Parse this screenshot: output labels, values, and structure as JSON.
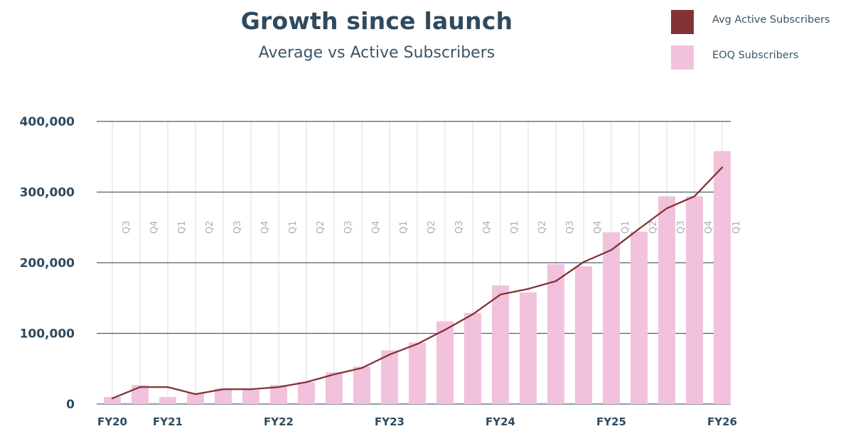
{
  "chart_data": {
    "type": "bar",
    "title": "Growth since launch",
    "subtitle": "Average vs Active Subscribers",
    "ylim": [
      0,
      400000
    ],
    "yticks": [
      0,
      100000,
      200000,
      300000,
      400000
    ],
    "ytick_labels": [
      "0",
      "100,000",
      "200,000",
      "300,000",
      "400,000"
    ],
    "categories": [
      "FY20 Q3",
      "FY20 Q4",
      "FY21 Q1",
      "FY21 Q2",
      "FY21 Q3",
      "FY21 Q4",
      "FY22 Q1",
      "FY22 Q2",
      "FY22 Q3",
      "FY22 Q4",
      "FY23 Q1",
      "FY23 Q2",
      "FY23 Q3",
      "FY23 Q4",
      "FY24 Q1",
      "FY24 Q2",
      "FY24 Q3",
      "FY24 Q4",
      "FY25 Q1",
      "FY25 Q2",
      "FY25 Q3",
      "FY25 Q4",
      "FY26 Q1"
    ],
    "quarter_labels": [
      "Q3",
      "Q4",
      "Q1",
      "Q2",
      "Q3",
      "Q4",
      "Q1",
      "Q2",
      "Q3",
      "Q4",
      "Q1",
      "Q2",
      "Q3",
      "Q4",
      "Q1",
      "Q2",
      "Q3",
      "Q4",
      "Q1",
      "Q2",
      "Q3",
      "Q4",
      "Q1"
    ],
    "fiscal_year_labels": [
      {
        "label": "FY20",
        "index": 0
      },
      {
        "label": "FY21",
        "index": 2
      },
      {
        "label": "FY22",
        "index": 6
      },
      {
        "label": "FY23",
        "index": 10
      },
      {
        "label": "FY24",
        "index": 14
      },
      {
        "label": "FY25",
        "index": 18
      },
      {
        "label": "FY26",
        "index": 22
      }
    ],
    "series": [
      {
        "name": "Avg Active Subscribers",
        "type": "line",
        "color": "#833237",
        "values": [
          8000,
          24000,
          24000,
          14000,
          21000,
          21000,
          24000,
          31000,
          42000,
          51000,
          70000,
          85000,
          105000,
          127000,
          155000,
          163000,
          174000,
          201000,
          218000,
          248000,
          277000,
          294000,
          335000
        ]
      },
      {
        "name": "EOQ Subscribers",
        "type": "bar",
        "color": "#f2c2dc",
        "values": [
          10000,
          27000,
          10000,
          16000,
          22000,
          20000,
          27000,
          31000,
          45000,
          53000,
          76000,
          87000,
          117000,
          129000,
          168000,
          158000,
          198000,
          195000,
          243000,
          244000,
          294000,
          294000,
          358000
        ]
      }
    ],
    "legend_position": "top-right"
  },
  "colors": {
    "title": "#2f4a5e",
    "axis_text": "#2f4a5e",
    "grid": "#4a5f70",
    "vgrid": "#d8dde2",
    "quarter_text": "#a8b0b8"
  }
}
